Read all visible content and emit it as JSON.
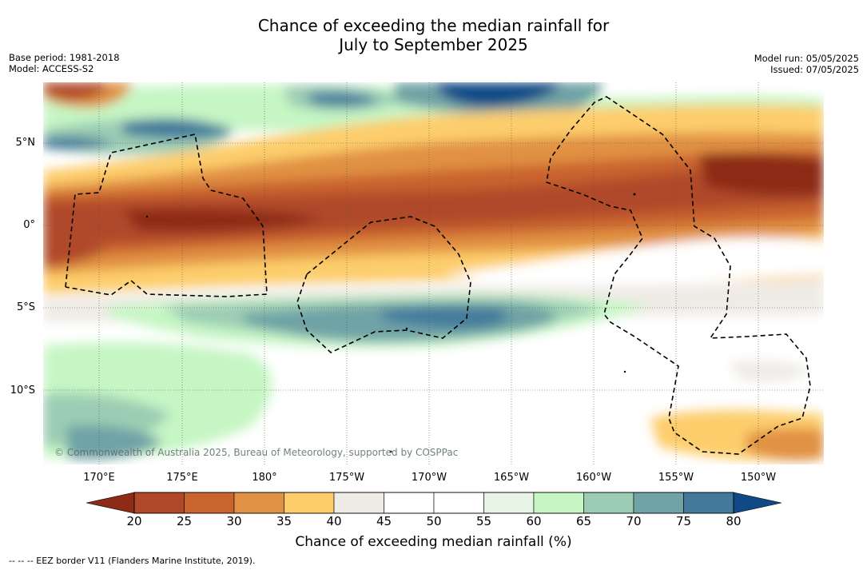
{
  "title_line1": "Chance of exceeding the median rainfall for",
  "title_line2": "July to September 2025",
  "base_period": "Base period: 1981-2018",
  "model": "Model: ACCESS-S2",
  "model_run": "Model run: 05/05/2025",
  "issued": "Issued: 07/05/2025",
  "lat_labels": [
    "5°N",
    "0°",
    "5°S",
    "10°S"
  ],
  "lon_labels": [
    "170°E",
    "175°E",
    "180°",
    "175°W",
    "170°W",
    "165°W",
    "160°W",
    "155°W",
    "150°W"
  ],
  "watermark": "© Commonwealth of Australia 2025, Bureau of Meteorology, supported by COSPPac",
  "colorbar": {
    "ticks": [
      "20",
      "25",
      "30",
      "35",
      "40",
      "45",
      "50",
      "55",
      "60",
      "65",
      "70",
      "75",
      "80"
    ],
    "label": "Chance of exceeding median rainfall (%)",
    "colors": [
      "#8d2b16",
      "#b0482a",
      "#c9642f",
      "#e19143",
      "#fdcd6c",
      "#efebe6",
      "#ffffff",
      "#ffffff",
      "#e8f5e6",
      "#c6f6c4",
      "#9ccdb4",
      "#6fa3a6",
      "#437a9c",
      "#0f4a86"
    ]
  },
  "footnote": "--  --  -- EEZ border V11 (Flanders Marine Institute, 2019)."
}
